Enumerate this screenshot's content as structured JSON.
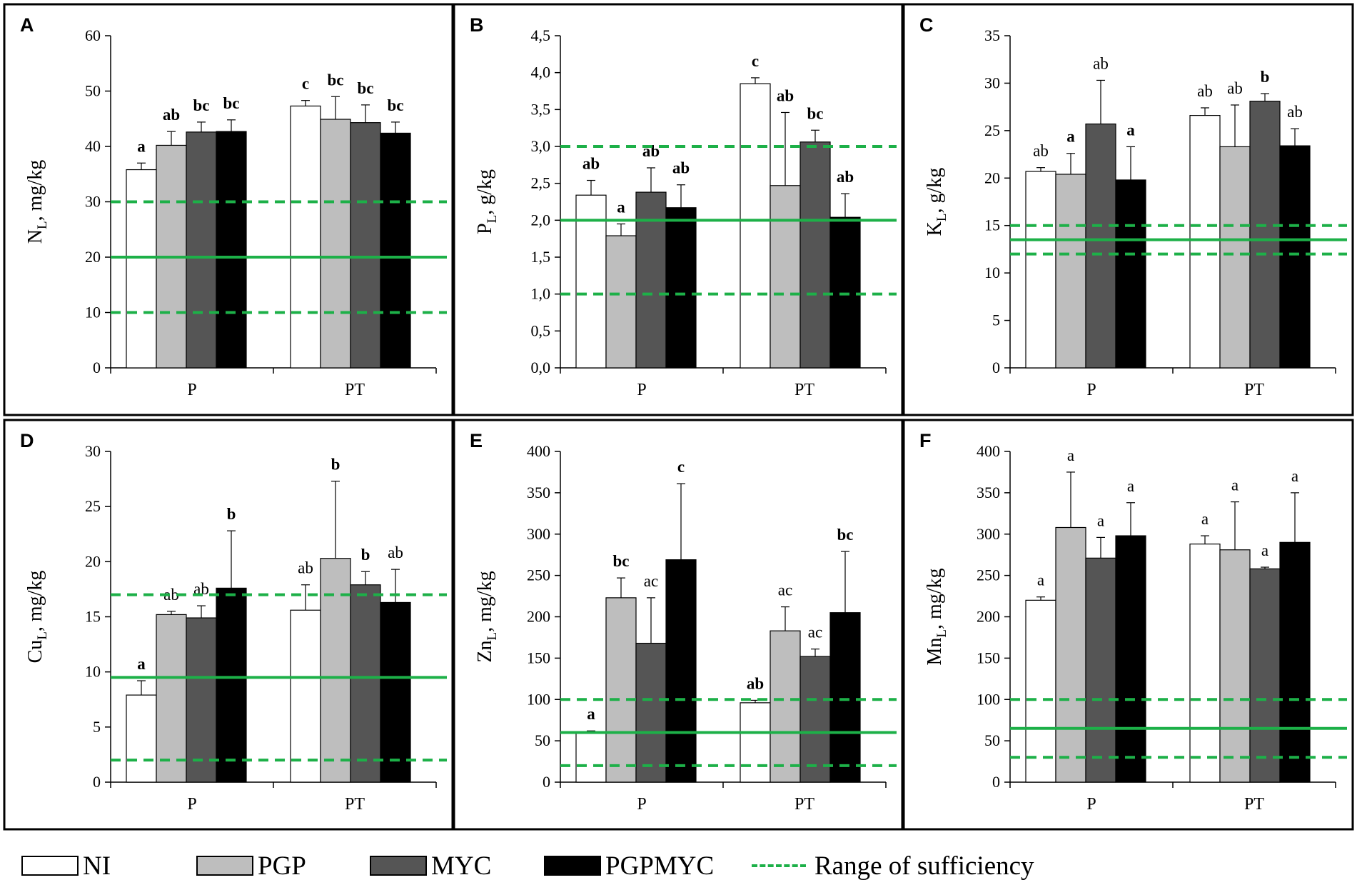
{
  "chart_data": [
    {
      "type": "bar",
      "panel": "A",
      "ylabel": "N",
      "ylabel_sub": "L",
      "ylabel_unit": "mg/kg",
      "ylim": [
        0,
        60
      ],
      "yticks": [
        "0",
        "10",
        "20",
        "30",
        "40",
        "50",
        "60"
      ],
      "categories": [
        "P",
        "PT"
      ],
      "series": [
        {
          "name": "NI",
          "values": [
            35.8,
            47.3
          ],
          "errors": [
            1.2,
            1.0
          ],
          "letters": [
            "a",
            "c"
          ],
          "bold": [
            true,
            true
          ]
        },
        {
          "name": "PGP",
          "values": [
            40.2,
            44.9
          ],
          "errors": [
            2.5,
            4.1
          ],
          "letters": [
            "ab",
            "bc"
          ],
          "bold": [
            true,
            true
          ]
        },
        {
          "name": "MYC",
          "values": [
            42.6,
            44.3
          ],
          "errors": [
            1.8,
            3.2
          ],
          "letters": [
            "bc",
            "bc"
          ],
          "bold": [
            true,
            true
          ]
        },
        {
          "name": "PGPMYC",
          "values": [
            42.7,
            42.4
          ],
          "errors": [
            2.1,
            2.0
          ],
          "letters": [
            "bc",
            "bc"
          ],
          "bold": [
            true,
            true
          ]
        }
      ],
      "sufficiency": {
        "low": 10,
        "mid": 20,
        "high": 30
      }
    },
    {
      "type": "bar",
      "panel": "B",
      "ylabel": "P",
      "ylabel_sub": "L",
      "ylabel_unit": "g/kg",
      "ylim": [
        0,
        4.5
      ],
      "yticks": [
        "0,0",
        "0,5",
        "1,0",
        "1,5",
        "2,0",
        "2,5",
        "3,0",
        "3,5",
        "4,0",
        "4,5"
      ],
      "categories": [
        "P",
        "PT"
      ],
      "series": [
        {
          "name": "NI",
          "values": [
            2.34,
            3.85
          ],
          "errors": [
            0.2,
            0.08
          ],
          "letters": [
            "ab",
            "c"
          ],
          "bold": [
            true,
            true
          ]
        },
        {
          "name": "PGP",
          "values": [
            1.79,
            2.47
          ],
          "errors": [
            0.16,
            0.99
          ],
          "letters": [
            "a",
            "ab"
          ],
          "bold": [
            true,
            true
          ]
        },
        {
          "name": "MYC",
          "values": [
            2.38,
            3.06
          ],
          "errors": [
            0.33,
            0.16
          ],
          "letters": [
            "ab",
            "bc"
          ],
          "bold": [
            true,
            true
          ]
        },
        {
          "name": "PGPMYC",
          "values": [
            2.17,
            2.04
          ],
          "errors": [
            0.31,
            0.32
          ],
          "letters": [
            "ab",
            "ab"
          ],
          "bold": [
            true,
            true
          ]
        }
      ],
      "sufficiency": {
        "low": 1.0,
        "mid": 2.0,
        "high": 3.0
      }
    },
    {
      "type": "bar",
      "panel": "C",
      "ylabel": "K",
      "ylabel_sub": "L",
      "ylabel_unit": "g/kg",
      "ylim": [
        0,
        35
      ],
      "yticks": [
        "0",
        "5",
        "10",
        "15",
        "20",
        "25",
        "30",
        "35"
      ],
      "categories": [
        "P",
        "PT"
      ],
      "series": [
        {
          "name": "NI",
          "values": [
            20.7,
            26.6
          ],
          "errors": [
            0.4,
            0.8
          ],
          "letters": [
            "ab",
            "ab"
          ],
          "bold": [
            false,
            false
          ]
        },
        {
          "name": "PGP",
          "values": [
            20.4,
            23.3
          ],
          "errors": [
            2.2,
            4.4
          ],
          "letters": [
            "a",
            "ab"
          ],
          "bold": [
            true,
            false
          ]
        },
        {
          "name": "MYC",
          "values": [
            25.7,
            28.1
          ],
          "errors": [
            4.6,
            0.8
          ],
          "letters": [
            "ab",
            "b"
          ],
          "bold": [
            false,
            true
          ]
        },
        {
          "name": "PGPMYC",
          "values": [
            19.8,
            23.4
          ],
          "errors": [
            3.5,
            1.8
          ],
          "letters": [
            "a",
            "ab"
          ],
          "bold": [
            true,
            false
          ]
        }
      ],
      "sufficiency": {
        "low": 12,
        "mid": 13.5,
        "high": 15
      }
    },
    {
      "type": "bar",
      "panel": "D",
      "ylabel": "Cu",
      "ylabel_sub": "L",
      "ylabel_unit": "mg/kg",
      "ylim": [
        0,
        30
      ],
      "yticks": [
        "0",
        "5",
        "10",
        "15",
        "20",
        "25",
        "30"
      ],
      "categories": [
        "P",
        "PT"
      ],
      "series": [
        {
          "name": "NI",
          "values": [
            7.9,
            15.6
          ],
          "errors": [
            1.3,
            2.3
          ],
          "letters": [
            "a",
            "ab"
          ],
          "bold": [
            true,
            false
          ]
        },
        {
          "name": "PGP",
          "values": [
            15.2,
            20.3
          ],
          "errors": [
            0.3,
            7.0
          ],
          "letters": [
            "ab",
            "b"
          ],
          "bold": [
            false,
            true
          ]
        },
        {
          "name": "MYC",
          "values": [
            14.9,
            17.9
          ],
          "errors": [
            1.1,
            1.2
          ],
          "letters": [
            "ab",
            "b"
          ],
          "bold": [
            false,
            true
          ]
        },
        {
          "name": "PGPMYC",
          "values": [
            17.6,
            16.3
          ],
          "errors": [
            5.2,
            3.0
          ],
          "letters": [
            "b",
            "ab"
          ],
          "bold": [
            true,
            false
          ]
        }
      ],
      "sufficiency": {
        "low": 2,
        "mid": 9.5,
        "high": 17
      }
    },
    {
      "type": "bar",
      "panel": "E",
      "ylabel": "Zn",
      "ylabel_sub": "L",
      "ylabel_unit": "mg/kg",
      "ylim": [
        0,
        400
      ],
      "yticks": [
        "0",
        "50",
        "100",
        "150",
        "200",
        "250",
        "300",
        "350",
        "400"
      ],
      "categories": [
        "P",
        "PT"
      ],
      "series": [
        {
          "name": "NI",
          "values": [
            60,
            96
          ],
          "errors": [
            2,
            3
          ],
          "letters": [
            "a",
            "ab"
          ],
          "bold": [
            true,
            true
          ]
        },
        {
          "name": "PGP",
          "values": [
            223,
            183
          ],
          "errors": [
            24,
            29
          ],
          "letters": [
            "bc",
            "ac"
          ],
          "bold": [
            true,
            false
          ]
        },
        {
          "name": "MYC",
          "values": [
            168,
            152
          ],
          "errors": [
            55,
            9
          ],
          "letters": [
            "ac",
            "ac"
          ],
          "bold": [
            false,
            false
          ]
        },
        {
          "name": "PGPMYC",
          "values": [
            269,
            205
          ],
          "errors": [
            92,
            74
          ],
          "letters": [
            "c",
            "bc"
          ],
          "bold": [
            true,
            true
          ]
        }
      ],
      "sufficiency": {
        "low": 20,
        "mid": 60,
        "high": 100
      }
    },
    {
      "type": "bar",
      "panel": "F",
      "ylabel": "Mn",
      "ylabel_sub": "L",
      "ylabel_unit": "mg/kg",
      "ylim": [
        0,
        400
      ],
      "yticks": [
        "0",
        "50",
        "100",
        "150",
        "200",
        "250",
        "300",
        "350",
        "400"
      ],
      "categories": [
        "P",
        "PT"
      ],
      "series": [
        {
          "name": "NI",
          "values": [
            220,
            288
          ],
          "errors": [
            4,
            10
          ],
          "letters": [
            "a",
            "a"
          ],
          "bold": [
            false,
            false
          ]
        },
        {
          "name": "PGP",
          "values": [
            308,
            281
          ],
          "errors": [
            67,
            58
          ],
          "letters": [
            "a",
            "a"
          ],
          "bold": [
            false,
            false
          ]
        },
        {
          "name": "MYC",
          "values": [
            271,
            258
          ],
          "errors": [
            25,
            2
          ],
          "letters": [
            "a",
            "a"
          ],
          "bold": [
            false,
            false
          ]
        },
        {
          "name": "PGPMYC",
          "values": [
            298,
            290
          ],
          "errors": [
            40,
            60
          ],
          "letters": [
            "a",
            "a"
          ],
          "bold": [
            false,
            false
          ]
        }
      ],
      "sufficiency": {
        "low": 30,
        "mid": 65,
        "high": 100
      }
    }
  ],
  "legend": {
    "items": [
      {
        "label": "NI",
        "color": "#ffffff"
      },
      {
        "label": "PGP",
        "color": "#bebebe"
      },
      {
        "label": "MYC",
        "color": "#555555"
      },
      {
        "label": "PGPMYC",
        "color": "#000000"
      }
    ],
    "sufficiency_label": "Range of sufficiency"
  },
  "colors": {
    "NI": "#ffffff",
    "PGP": "#bebebe",
    "MYC": "#555555",
    "PGPMYC": "#000000",
    "sufficiency": "#1db048",
    "frame": "#000000"
  }
}
